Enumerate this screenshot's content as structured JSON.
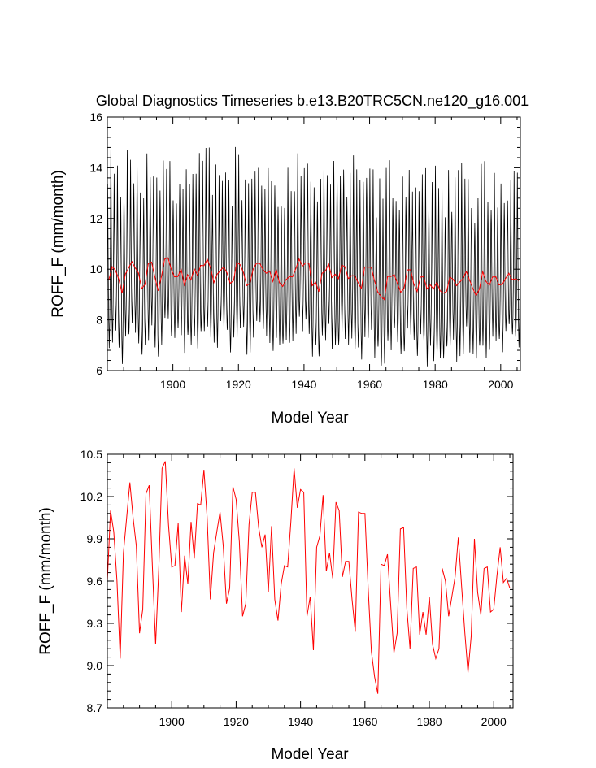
{
  "chart_data": [
    {
      "type": "line",
      "title": "Global Diagnostics Timeseries b.e13.B20TRC5CN.ne120_g16.001",
      "xlabel": "Model Year",
      "ylabel": "ROFF_F (mm/month)",
      "xlim": [
        1880,
        2006
      ],
      "ylim": [
        6,
        16
      ],
      "xticks": [
        1900,
        1920,
        1940,
        1960,
        1980,
        2000
      ],
      "yticks": [
        6,
        8,
        10,
        12,
        14,
        16
      ],
      "monthly_seasonal_cycle": [
        12.3,
        13.6,
        12.4,
        10.8,
        9.4,
        8.4,
        7.9,
        7.7,
        7.9,
        8.5,
        9.4,
        10.7
      ],
      "series": [
        {
          "name": "",
          "color": "#000000",
          "resolution": "monthly",
          "derived_from": "annual"
        },
        {
          "name": "",
          "color": "#ff0000",
          "resolution": "annual",
          "derived_from": "annual"
        }
      ]
    },
    {
      "type": "line",
      "title": "",
      "xlabel": "Model Year",
      "ylabel": "ROFF_F (mm/month)",
      "xlim": [
        1880,
        2006
      ],
      "ylim": [
        8.7,
        10.5
      ],
      "xticks": [
        1900,
        1920,
        1940,
        1960,
        1980,
        2000
      ],
      "yticks": [
        "8.7",
        "9.0",
        "9.3",
        "9.6",
        "9.9",
        "10.2",
        "10.5"
      ],
      "series": [
        {
          "name": "",
          "color": "#ff0000",
          "resolution": "annual",
          "derived_from": "annual"
        }
      ]
    }
  ],
  "annual": {
    "x_start": 1880,
    "values": [
      9.6,
      10.1,
      9.95,
      9.6,
      9.05,
      9.8,
      10.05,
      10.3,
      10.05,
      9.85,
      9.23,
      9.4,
      10.22,
      10.28,
      9.7,
      9.15,
      9.7,
      10.4,
      10.45,
      10.0,
      9.7,
      9.71,
      10.01,
      9.38,
      9.78,
      9.58,
      10.02,
      9.76,
      10.15,
      10.14,
      10.39,
      10.05,
      9.47,
      9.8,
      9.95,
      10.09,
      9.85,
      9.44,
      9.55,
      10.27,
      10.18,
      9.88,
      9.35,
      9.44,
      10.0,
      10.23,
      10.23,
      9.98,
      9.84,
      9.93,
      9.52,
      9.99,
      9.47,
      9.32,
      9.58,
      9.71,
      9.7,
      10.02,
      10.4,
      10.12,
      10.25,
      10.23,
      9.35,
      9.49,
      9.11,
      9.84,
      9.92,
      10.21,
      9.67,
      9.8,
      9.62,
      10.16,
      10.1,
      9.63,
      9.74,
      9.74,
      9.47,
      9.24,
      10.09,
      10.08,
      10.08,
      9.55,
      9.1,
      8.92,
      8.8,
      9.72,
      9.71,
      9.79,
      9.43,
      9.09,
      9.23,
      9.97,
      9.98,
      9.41,
      9.12,
      9.69,
      9.7,
      9.22,
      9.38,
      9.22,
      9.49,
      9.15,
      9.05,
      9.12,
      9.69,
      9.6,
      9.35,
      9.49,
      9.63,
      9.91,
      9.57,
      9.24,
      8.95,
      9.21,
      9.9,
      9.52,
      9.36,
      9.69,
      9.7,
      9.38,
      9.4,
      9.64,
      9.84,
      9.59,
      9.62,
      9.55
    ]
  }
}
